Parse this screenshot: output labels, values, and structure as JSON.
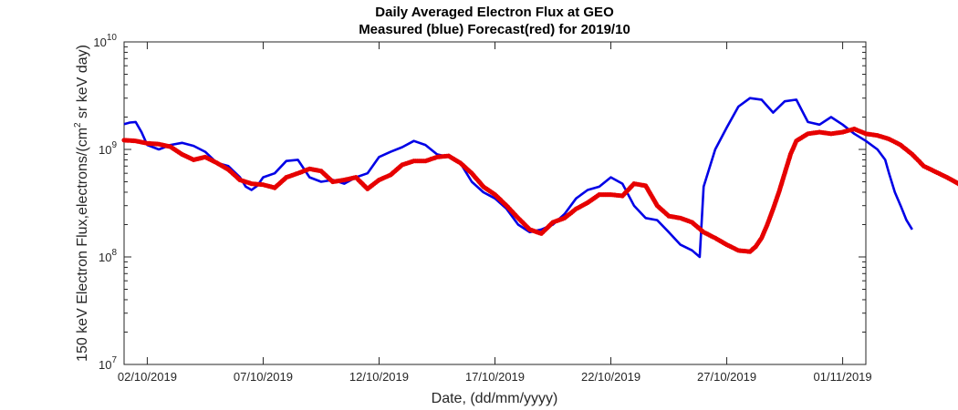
{
  "chart_data": {
    "type": "line",
    "title": "Daily Averaged Electron Flux at GEO",
    "subtitle": "Measured (blue) Forecast(red) for 2019/10",
    "xlabel": "Date, (dd/mm/yyyy)",
    "ylabel_main": "150 keV Electron Flux,electrons/(cm",
    "ylabel_sup": "2",
    "ylabel_tail": " sr keV day)",
    "y_scale": "log",
    "ylim": [
      10000000,
      10000000000
    ],
    "xlim": [
      "01/10/2019",
      "02/11/2019"
    ],
    "x_ticks": [
      "02/10/2019",
      "07/10/2019",
      "12/10/2019",
      "17/10/2019",
      "22/10/2019",
      "27/10/2019",
      "01/11/2019"
    ],
    "y_ticks": [
      {
        "value": 10000000,
        "base": "10",
        "exp": "7"
      },
      {
        "value": 100000000,
        "base": "10",
        "exp": "8"
      },
      {
        "value": 1000000000,
        "base": "10",
        "exp": "9"
      },
      {
        "value": 10000000000,
        "base": "10",
        "exp": "10"
      }
    ],
    "grid": false,
    "series": [
      {
        "color": "#0000e6",
        "style": "line",
        "points": [
          [
            "01/10/2019 00:00",
            1720000000.0
          ],
          [
            "01/10/2019 06:00",
            1780000000.0
          ],
          [
            "01/10/2019 12:00",
            1800000000.0
          ],
          [
            "01/10/2019 18:00",
            1450000000.0
          ],
          [
            "02/10/2019 00:00",
            1100000000.0
          ],
          [
            "02/10/2019 12:00",
            1000000000.0
          ],
          [
            "03/10/2019 00:00",
            1100000000.0
          ],
          [
            "03/10/2019 12:00",
            1150000000.0
          ],
          [
            "04/10/2019 00:00",
            1080000000.0
          ],
          [
            "04/10/2019 12:00",
            950000000.0
          ],
          [
            "05/10/2019 00:00",
            750000000.0
          ],
          [
            "05/10/2019 12:00",
            700000000.0
          ],
          [
            "06/10/2019 00:00",
            550000000.0
          ],
          [
            "06/10/2019 06:00",
            450000000.0
          ],
          [
            "06/10/2019 12:00",
            420000000.0
          ],
          [
            "06/10/2019 18:00",
            460000000.0
          ],
          [
            "07/10/2019 00:00",
            550000000.0
          ],
          [
            "07/10/2019 12:00",
            600000000.0
          ],
          [
            "08/10/2019 00:00",
            780000000.0
          ],
          [
            "08/10/2019 12:00",
            800000000.0
          ],
          [
            "09/10/2019 00:00",
            550000000.0
          ],
          [
            "09/10/2019 12:00",
            500000000.0
          ],
          [
            "10/10/2019 00:00",
            520000000.0
          ],
          [
            "10/10/2019 12:00",
            480000000.0
          ],
          [
            "11/10/2019 00:00",
            550000000.0
          ],
          [
            "11/10/2019 12:00",
            600000000.0
          ],
          [
            "12/10/2019 00:00",
            850000000.0
          ],
          [
            "12/10/2019 12:00",
            950000000.0
          ],
          [
            "13/10/2019 00:00",
            1050000000.0
          ],
          [
            "13/10/2019 12:00",
            1200000000.0
          ],
          [
            "14/10/2019 00:00",
            1100000000.0
          ],
          [
            "14/10/2019 12:00",
            900000000.0
          ],
          [
            "15/10/2019 00:00",
            850000000.0
          ],
          [
            "15/10/2019 12:00",
            750000000.0
          ],
          [
            "16/10/2019 00:00",
            500000000.0
          ],
          [
            "16/10/2019 12:00",
            400000000.0
          ],
          [
            "17/10/2019 00:00",
            350000000.0
          ],
          [
            "17/10/2019 12:00",
            280000000.0
          ],
          [
            "18/10/2019 00:00",
            200000000.0
          ],
          [
            "18/10/2019 12:00",
            170000000.0
          ],
          [
            "19/10/2019 00:00",
            180000000.0
          ],
          [
            "19/10/2019 12:00",
            200000000.0
          ],
          [
            "20/10/2019 00:00",
            250000000.0
          ],
          [
            "20/10/2019 12:00",
            350000000.0
          ],
          [
            "21/10/2019 00:00",
            420000000.0
          ],
          [
            "21/10/2019 12:00",
            450000000.0
          ],
          [
            "22/10/2019 00:00",
            550000000.0
          ],
          [
            "22/10/2019 12:00",
            480000000.0
          ],
          [
            "23/10/2019 00:00",
            300000000.0
          ],
          [
            "23/10/2019 12:00",
            230000000.0
          ],
          [
            "24/10/2019 00:00",
            220000000.0
          ],
          [
            "24/10/2019 12:00",
            170000000.0
          ],
          [
            "25/10/2019 00:00",
            130000000.0
          ],
          [
            "25/10/2019 12:00",
            115000000.0
          ],
          [
            "25/10/2019 20:00",
            100000000.0
          ],
          [
            "26/10/2019 00:00",
            450000000.0
          ],
          [
            "26/10/2019 12:00",
            1000000000.0
          ],
          [
            "27/10/2019 00:00",
            1600000000.0
          ],
          [
            "27/10/2019 12:00",
            2500000000.0
          ],
          [
            "28/10/2019 00:00",
            3000000000.0
          ],
          [
            "28/10/2019 12:00",
            2900000000.0
          ],
          [
            "29/10/2019 00:00",
            2200000000.0
          ],
          [
            "29/10/2019 12:00",
            2800000000.0
          ],
          [
            "30/10/2019 00:00",
            2900000000.0
          ],
          [
            "30/10/2019 12:00",
            1800000000.0
          ],
          [
            "31/10/2019 00:00",
            1700000000.0
          ],
          [
            "31/10/2019 12:00",
            2000000000.0
          ],
          [
            "01/11/2019 00:00",
            1700000000.0
          ],
          [
            "01/11/2019 12:00",
            1400000000.0
          ],
          [
            "02/11/2019 00:00",
            1200000000.0
          ],
          [
            "02/11/2019 12:00",
            1000000000.0
          ],
          [
            "02/11/2019 20:00",
            800000000.0
          ],
          [
            "03/11/2019 00:00",
            600000000.0
          ],
          [
            "03/11/2019 06:00",
            400000000.0
          ],
          [
            "03/11/2019 12:00",
            300000000.0
          ],
          [
            "03/11/2019 18:00",
            220000000.0
          ],
          [
            "04/11/2019 00:00",
            180000000.0
          ]
        ]
      },
      {
        "color": "#e60000",
        "style": "dots",
        "points": [
          [
            "01/10/2019 00:00",
            1220000000.0
          ],
          [
            "01/10/2019 12:00",
            1200000000.0
          ],
          [
            "02/10/2019 00:00",
            1140000000.0
          ],
          [
            "02/10/2019 12:00",
            1120000000.0
          ],
          [
            "03/10/2019 00:00",
            1060000000.0
          ],
          [
            "03/10/2019 12:00",
            900000000.0
          ],
          [
            "04/10/2019 00:00",
            800000000.0
          ],
          [
            "04/10/2019 12:00",
            850000000.0
          ],
          [
            "05/10/2019 00:00",
            750000000.0
          ],
          [
            "05/10/2019 12:00",
            650000000.0
          ],
          [
            "06/10/2019 00:00",
            520000000.0
          ],
          [
            "06/10/2019 12:00",
            480000000.0
          ],
          [
            "07/10/2019 00:00",
            470000000.0
          ],
          [
            "07/10/2019 12:00",
            440000000.0
          ],
          [
            "08/10/2019 00:00",
            550000000.0
          ],
          [
            "08/10/2019 12:00",
            600000000.0
          ],
          [
            "09/10/2019 00:00",
            660000000.0
          ],
          [
            "09/10/2019 12:00",
            630000000.0
          ],
          [
            "10/10/2019 00:00",
            500000000.0
          ],
          [
            "10/10/2019 12:00",
            520000000.0
          ],
          [
            "11/10/2019 00:00",
            550000000.0
          ],
          [
            "11/10/2019 12:00",
            430000000.0
          ],
          [
            "12/10/2019 00:00",
            520000000.0
          ],
          [
            "12/10/2019 12:00",
            580000000.0
          ],
          [
            "13/10/2019 00:00",
            720000000.0
          ],
          [
            "13/10/2019 12:00",
            780000000.0
          ],
          [
            "14/10/2019 00:00",
            780000000.0
          ],
          [
            "14/10/2019 12:00",
            850000000.0
          ],
          [
            "15/10/2019 00:00",
            870000000.0
          ],
          [
            "15/10/2019 12:00",
            750000000.0
          ],
          [
            "16/10/2019 00:00",
            600000000.0
          ],
          [
            "16/10/2019 12:00",
            450000000.0
          ],
          [
            "17/10/2019 00:00",
            380000000.0
          ],
          [
            "17/10/2019 12:00",
            300000000.0
          ],
          [
            "18/10/2019 00:00",
            230000000.0
          ],
          [
            "18/10/2019 12:00",
            180000000.0
          ],
          [
            "19/10/2019 00:00",
            165000000.0
          ],
          [
            "19/10/2019 12:00",
            210000000.0
          ],
          [
            "20/10/2019 00:00",
            230000000.0
          ],
          [
            "20/10/2019 12:00",
            280000000.0
          ],
          [
            "21/10/2019 00:00",
            320000000.0
          ],
          [
            "21/10/2019 12:00",
            380000000.0
          ],
          [
            "22/10/2019 00:00",
            380000000.0
          ],
          [
            "22/10/2019 12:00",
            370000000.0
          ],
          [
            "23/10/2019 00:00",
            480000000.0
          ],
          [
            "23/10/2019 12:00",
            460000000.0
          ],
          [
            "24/10/2019 00:00",
            300000000.0
          ],
          [
            "24/10/2019 12:00",
            240000000.0
          ],
          [
            "25/10/2019 00:00",
            230000000.0
          ],
          [
            "25/10/2019 12:00",
            210000000.0
          ],
          [
            "26/10/2019 00:00",
            170000000.0
          ],
          [
            "26/10/2019 12:00",
            150000000.0
          ],
          [
            "27/10/2019 00:00",
            130000000.0
          ],
          [
            "27/10/2019 12:00",
            115000000.0
          ],
          [
            "28/10/2019 00:00",
            112000000.0
          ],
          [
            "28/10/2019 06:00",
            125000000.0
          ],
          [
            "28/10/2019 12:00",
            150000000.0
          ],
          [
            "28/10/2019 18:00",
            200000000.0
          ],
          [
            "29/10/2019 00:00",
            280000000.0
          ],
          [
            "29/10/2019 06:00",
            400000000.0
          ],
          [
            "29/10/2019 12:00",
            600000000.0
          ],
          [
            "29/10/2019 18:00",
            900000000.0
          ],
          [
            "30/10/2019 00:00",
            1200000000.0
          ],
          [
            "30/10/2019 12:00",
            1400000000.0
          ],
          [
            "31/10/2019 00:00",
            1450000000.0
          ],
          [
            "31/10/2019 12:00",
            1400000000.0
          ],
          [
            "01/11/2019 00:00",
            1450000000.0
          ],
          [
            "01/11/2019 12:00",
            1550000000.0
          ],
          [
            "02/11/2019 00:00",
            1400000000.0
          ],
          [
            "02/11/2019 12:00",
            1350000000.0
          ],
          [
            "03/11/2019 00:00",
            1250000000.0
          ],
          [
            "03/11/2019 12:00",
            1100000000.0
          ],
          [
            "04/11/2019 00:00",
            900000000.0
          ],
          [
            "04/11/2019 12:00",
            700000000.0
          ],
          [
            "05/11/2019 00:00",
            620000000.0
          ],
          [
            "05/11/2019 12:00",
            550000000.0
          ],
          [
            "06/11/2019 00:00",
            480000000.0
          ],
          [
            "06/11/2019 06:00",
            420000000.0
          ]
        ]
      }
    ]
  }
}
